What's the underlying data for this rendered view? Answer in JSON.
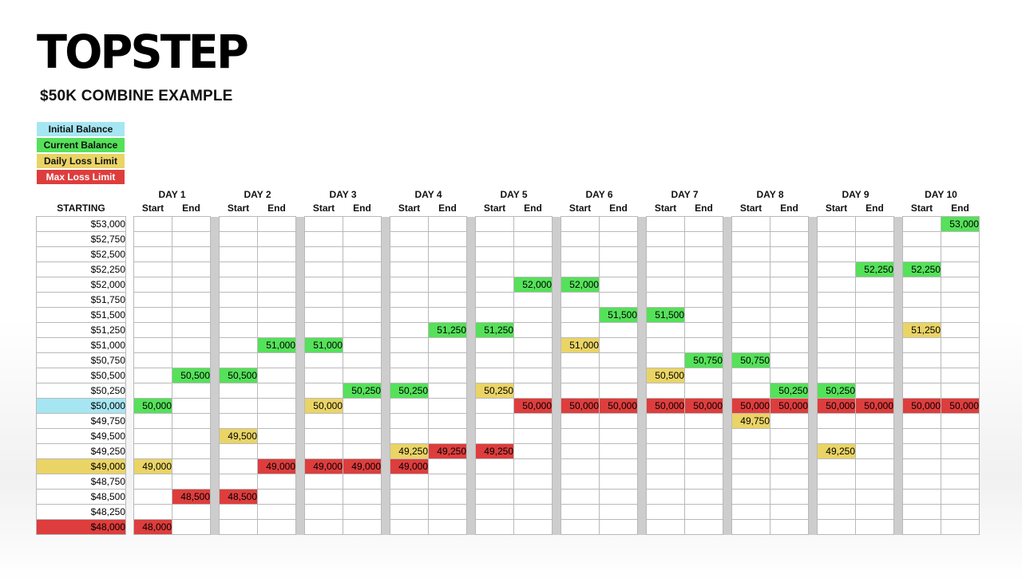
{
  "brand": "TOPSTEP",
  "subtitle": "$50K COMBINE EXAMPLE",
  "colors": {
    "initial": "#a6e6f2",
    "current": "#55e15a",
    "daily": "#ead466",
    "max": "#de3d3d"
  },
  "legend": [
    {
      "label": "Initial Balance",
      "type": "initial"
    },
    {
      "label": "Current Balance",
      "type": "current"
    },
    {
      "label": "Daily Loss Limit",
      "type": "daily"
    },
    {
      "label": "Max Loss Limit",
      "type": "max"
    }
  ],
  "starting_label": "STARTING",
  "start_label": "Start",
  "end_label": "End",
  "days": [
    "DAY 1",
    "DAY 2",
    "DAY 3",
    "DAY 4",
    "DAY 5",
    "DAY 6",
    "DAY 7",
    "DAY 8",
    "DAY 9",
    "DAY 10"
  ],
  "rows": [
    "$53,000",
    "$52,750",
    "$52,500",
    "$52,250",
    "$52,000",
    "$51,750",
    "$51,500",
    "$51,250",
    "$51,000",
    "$50,750",
    "$50,500",
    "$50,250",
    "$50,000",
    "$49,750",
    "$49,500",
    "$49,250",
    "$49,000",
    "$48,750",
    "$48,500",
    "$48,250",
    "$48,000"
  ],
  "row_labels_highlight": [
    {
      "row": 12,
      "type": "initial"
    },
    {
      "row": 16,
      "type": "daily"
    },
    {
      "row": 20,
      "type": "max"
    }
  ],
  "cells": [
    {
      "row": 12,
      "col": 0,
      "type": "current",
      "text": "50,000"
    },
    {
      "row": 16,
      "col": 0,
      "type": "daily",
      "text": "49,000"
    },
    {
      "row": 20,
      "col": 0,
      "type": "max",
      "text": "48,000"
    },
    {
      "row": 10,
      "col": 1,
      "type": "current",
      "text": "50,500"
    },
    {
      "row": 18,
      "col": 1,
      "type": "max",
      "text": "48,500"
    },
    {
      "row": 10,
      "col": 2,
      "type": "current",
      "text": "50,500"
    },
    {
      "row": 14,
      "col": 2,
      "type": "daily",
      "text": "49,500"
    },
    {
      "row": 18,
      "col": 2,
      "type": "max",
      "text": "48,500"
    },
    {
      "row": 8,
      "col": 3,
      "type": "current",
      "text": "51,000"
    },
    {
      "row": 16,
      "col": 3,
      "type": "max",
      "text": "49,000"
    },
    {
      "row": 8,
      "col": 4,
      "type": "current",
      "text": "51,000"
    },
    {
      "row": 12,
      "col": 4,
      "type": "daily",
      "text": "50,000"
    },
    {
      "row": 16,
      "col": 4,
      "type": "max",
      "text": "49,000"
    },
    {
      "row": 11,
      "col": 5,
      "type": "current",
      "text": "50,250"
    },
    {
      "row": 16,
      "col": 5,
      "type": "max",
      "text": "49,000"
    },
    {
      "row": 11,
      "col": 6,
      "type": "current",
      "text": "50,250"
    },
    {
      "row": 15,
      "col": 6,
      "type": "daily",
      "text": "49,250"
    },
    {
      "row": 16,
      "col": 6,
      "type": "max",
      "text": "49,000"
    },
    {
      "row": 7,
      "col": 7,
      "type": "current",
      "text": "51,250"
    },
    {
      "row": 15,
      "col": 7,
      "type": "max",
      "text": "49,250"
    },
    {
      "row": 7,
      "col": 8,
      "type": "current",
      "text": "51,250"
    },
    {
      "row": 11,
      "col": 8,
      "type": "daily",
      "text": "50,250"
    },
    {
      "row": 15,
      "col": 8,
      "type": "max",
      "text": "49,250"
    },
    {
      "row": 4,
      "col": 9,
      "type": "current",
      "text": "52,000"
    },
    {
      "row": 12,
      "col": 9,
      "type": "max",
      "text": "50,000"
    },
    {
      "row": 4,
      "col": 10,
      "type": "current",
      "text": "52,000"
    },
    {
      "row": 8,
      "col": 10,
      "type": "daily",
      "text": "51,000"
    },
    {
      "row": 12,
      "col": 10,
      "type": "max",
      "text": "50,000"
    },
    {
      "row": 6,
      "col": 11,
      "type": "current",
      "text": "51,500"
    },
    {
      "row": 12,
      "col": 11,
      "type": "max",
      "text": "50,000"
    },
    {
      "row": 6,
      "col": 12,
      "type": "current",
      "text": "51,500"
    },
    {
      "row": 10,
      "col": 12,
      "type": "daily",
      "text": "50,500"
    },
    {
      "row": 12,
      "col": 12,
      "type": "max",
      "text": "50,000"
    },
    {
      "row": 9,
      "col": 13,
      "type": "current",
      "text": "50,750"
    },
    {
      "row": 12,
      "col": 13,
      "type": "max",
      "text": "50,000"
    },
    {
      "row": 9,
      "col": 14,
      "type": "current",
      "text": "50,750"
    },
    {
      "row": 12,
      "col": 14,
      "type": "max",
      "text": "50,000"
    },
    {
      "row": 13,
      "col": 14,
      "type": "daily",
      "text": "49,750"
    },
    {
      "row": 11,
      "col": 15,
      "type": "current",
      "text": "50,250"
    },
    {
      "row": 12,
      "col": 15,
      "type": "max",
      "text": "50,000"
    },
    {
      "row": 11,
      "col": 16,
      "type": "current",
      "text": "50,250"
    },
    {
      "row": 12,
      "col": 16,
      "type": "max",
      "text": "50,000"
    },
    {
      "row": 15,
      "col": 16,
      "type": "daily",
      "text": "49,250"
    },
    {
      "row": 3,
      "col": 17,
      "type": "current",
      "text": "52,250"
    },
    {
      "row": 12,
      "col": 17,
      "type": "max",
      "text": "50,000"
    },
    {
      "row": 3,
      "col": 18,
      "type": "current",
      "text": "52,250"
    },
    {
      "row": 7,
      "col": 18,
      "type": "daily",
      "text": "51,250"
    },
    {
      "row": 12,
      "col": 18,
      "type": "max",
      "text": "50,000"
    },
    {
      "row": 0,
      "col": 19,
      "type": "current",
      "text": "53,000"
    },
    {
      "row": 12,
      "col": 19,
      "type": "max",
      "text": "50,000"
    }
  ]
}
